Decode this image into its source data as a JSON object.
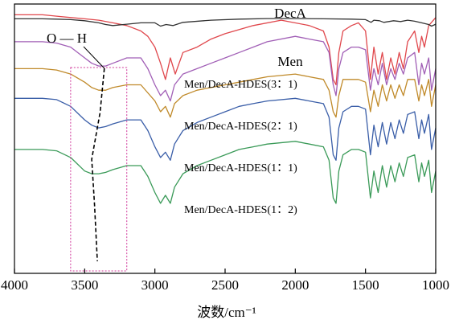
{
  "chart_data": {
    "type": "line",
    "xlabel": "波数/cm⁻¹",
    "ylabel": "",
    "xlim": [
      4000,
      1000
    ],
    "x_reversed": true,
    "x_ticks": [
      "4000",
      "3500",
      "3000",
      "2500",
      "2000",
      "1500",
      "1000"
    ],
    "grid": false,
    "legend": "inline labels next to each curve",
    "annotations": {
      "oh_label": "O — H",
      "oh_box_x_range": [
        3600,
        3200
      ],
      "oh_trend_x": [
        3360,
        3390,
        3450,
        3430,
        3410
      ]
    },
    "series": [
      {
        "name": "DecA",
        "color": "#e0474c",
        "x": [
          4000,
          3800,
          3700,
          3600,
          3500,
          3400,
          3300,
          3200,
          3100,
          3050,
          3000,
          2960,
          2925,
          2890,
          2855,
          2800,
          2700,
          2600,
          2500,
          2300,
          2100,
          1900,
          1800,
          1760,
          1730,
          1710,
          1690,
          1660,
          1600,
          1550,
          1500,
          1465,
          1440,
          1410,
          1380,
          1350,
          1320,
          1290,
          1260,
          1230,
          1200,
          1150,
          1120,
          1100,
          1080,
          1050,
          1000
        ],
        "y": [
          0.96,
          0.96,
          0.955,
          0.95,
          0.945,
          0.94,
          0.93,
          0.92,
          0.9,
          0.88,
          0.84,
          0.78,
          0.72,
          0.8,
          0.74,
          0.82,
          0.84,
          0.87,
          0.89,
          0.92,
          0.94,
          0.92,
          0.9,
          0.84,
          0.72,
          0.7,
          0.82,
          0.9,
          0.92,
          0.93,
          0.9,
          0.72,
          0.84,
          0.74,
          0.82,
          0.72,
          0.8,
          0.74,
          0.82,
          0.76,
          0.86,
          0.9,
          0.82,
          0.88,
          0.84,
          0.92,
          0.95
        ]
      },
      {
        "name": "Men",
        "color": "#333333",
        "x": [
          4000,
          3800,
          3700,
          3600,
          3500,
          3400,
          3350,
          3300,
          3200,
          3100,
          3000,
          2960,
          2920,
          2870,
          2800,
          2600,
          2400,
          2200,
          2000,
          1800,
          1600,
          1500,
          1460,
          1440,
          1400,
          1370,
          1300,
          1250,
          1200,
          1150,
          1100,
          1050,
          1030,
          1000
        ],
        "y": [
          0.945,
          0.945,
          0.944,
          0.942,
          0.938,
          0.93,
          0.924,
          0.92,
          0.925,
          0.93,
          0.93,
          0.918,
          0.924,
          0.92,
          0.932,
          0.94,
          0.944,
          0.946,
          0.946,
          0.945,
          0.944,
          0.942,
          0.932,
          0.94,
          0.938,
          0.932,
          0.938,
          0.935,
          0.94,
          0.936,
          0.93,
          0.924,
          0.918,
          0.925
        ]
      },
      {
        "name": "Men/DecA-HDES(3：1)",
        "color": "#a15fb6",
        "x": [
          4000,
          3800,
          3700,
          3600,
          3500,
          3450,
          3400,
          3350,
          3300,
          3200,
          3100,
          3050,
          3000,
          2960,
          2925,
          2890,
          2860,
          2800,
          2700,
          2600,
          2500,
          2400,
          2300,
          2200,
          2000,
          1900,
          1800,
          1760,
          1730,
          1710,
          1690,
          1660,
          1600,
          1550,
          1500,
          1465,
          1440,
          1410,
          1380,
          1350,
          1320,
          1290,
          1260,
          1230,
          1200,
          1150,
          1120,
          1100,
          1080,
          1050,
          1030,
          1000
        ],
        "y": [
          0.86,
          0.86,
          0.855,
          0.84,
          0.8,
          0.78,
          0.77,
          0.77,
          0.78,
          0.8,
          0.8,
          0.76,
          0.7,
          0.66,
          0.68,
          0.64,
          0.7,
          0.74,
          0.76,
          0.78,
          0.8,
          0.82,
          0.84,
          0.86,
          0.88,
          0.87,
          0.86,
          0.82,
          0.7,
          0.66,
          0.76,
          0.82,
          0.84,
          0.84,
          0.83,
          0.68,
          0.76,
          0.7,
          0.78,
          0.7,
          0.76,
          0.72,
          0.78,
          0.74,
          0.8,
          0.82,
          0.7,
          0.78,
          0.74,
          0.8,
          0.68,
          0.76
        ]
      },
      {
        "name": "Men/DecA-HDES(2：1)",
        "color": "#c08a2a",
        "x": [
          4000,
          3800,
          3700,
          3600,
          3500,
          3450,
          3400,
          3350,
          3300,
          3200,
          3100,
          3050,
          3000,
          2960,
          2925,
          2890,
          2860,
          2800,
          2700,
          2600,
          2500,
          2400,
          2300,
          2200,
          2000,
          1900,
          1800,
          1760,
          1730,
          1710,
          1690,
          1660,
          1600,
          1550,
          1500,
          1465,
          1440,
          1410,
          1380,
          1350,
          1320,
          1290,
          1260,
          1230,
          1200,
          1150,
          1120,
          1100,
          1080,
          1050,
          1030,
          1000
        ],
        "y": [
          0.76,
          0.76,
          0.755,
          0.74,
          0.71,
          0.69,
          0.68,
          0.68,
          0.69,
          0.7,
          0.7,
          0.67,
          0.64,
          0.6,
          0.62,
          0.58,
          0.63,
          0.66,
          0.68,
          0.69,
          0.7,
          0.71,
          0.72,
          0.73,
          0.74,
          0.73,
          0.72,
          0.68,
          0.6,
          0.58,
          0.66,
          0.72,
          0.72,
          0.72,
          0.71,
          0.6,
          0.68,
          0.62,
          0.7,
          0.64,
          0.7,
          0.65,
          0.7,
          0.66,
          0.72,
          0.72,
          0.64,
          0.7,
          0.66,
          0.72,
          0.62,
          0.7
        ]
      },
      {
        "name": "Men/DecA-HDES(1：1)",
        "color": "#3a5ea8",
        "x": [
          4000,
          3800,
          3700,
          3600,
          3500,
          3450,
          3400,
          3350,
          3300,
          3200,
          3100,
          3050,
          3000,
          2960,
          2925,
          2890,
          2860,
          2800,
          2700,
          2600,
          2500,
          2400,
          2300,
          2200,
          2000,
          1900,
          1800,
          1760,
          1730,
          1710,
          1690,
          1660,
          1600,
          1550,
          1500,
          1465,
          1440,
          1410,
          1380,
          1350,
          1320,
          1290,
          1260,
          1230,
          1200,
          1150,
          1120,
          1100,
          1080,
          1050,
          1030,
          1000
        ],
        "y": [
          0.65,
          0.65,
          0.645,
          0.62,
          0.57,
          0.55,
          0.54,
          0.545,
          0.555,
          0.57,
          0.57,
          0.53,
          0.47,
          0.43,
          0.45,
          0.42,
          0.48,
          0.53,
          0.56,
          0.58,
          0.6,
          0.62,
          0.63,
          0.64,
          0.65,
          0.64,
          0.63,
          0.58,
          0.44,
          0.42,
          0.54,
          0.6,
          0.62,
          0.62,
          0.61,
          0.44,
          0.55,
          0.47,
          0.56,
          0.48,
          0.56,
          0.5,
          0.57,
          0.52,
          0.59,
          0.6,
          0.5,
          0.57,
          0.52,
          0.59,
          0.46,
          0.54
        ]
      },
      {
        "name": "Men/DecA-HDES(1：2)",
        "color": "#3a9a58",
        "x": [
          4000,
          3800,
          3700,
          3600,
          3500,
          3450,
          3400,
          3350,
          3300,
          3200,
          3100,
          3050,
          3000,
          2960,
          2925,
          2890,
          2860,
          2800,
          2700,
          2600,
          2500,
          2400,
          2300,
          2200,
          2000,
          1900,
          1800,
          1760,
          1730,
          1710,
          1690,
          1660,
          1600,
          1550,
          1500,
          1465,
          1440,
          1410,
          1380,
          1350,
          1320,
          1290,
          1260,
          1230,
          1200,
          1150,
          1120,
          1100,
          1080,
          1050,
          1030,
          1000
        ],
        "y": [
          0.46,
          0.46,
          0.455,
          0.43,
          0.38,
          0.37,
          0.37,
          0.375,
          0.385,
          0.4,
          0.4,
          0.36,
          0.3,
          0.26,
          0.29,
          0.26,
          0.32,
          0.37,
          0.4,
          0.42,
          0.44,
          0.46,
          0.47,
          0.48,
          0.49,
          0.48,
          0.47,
          0.42,
          0.28,
          0.26,
          0.38,
          0.44,
          0.46,
          0.46,
          0.45,
          0.28,
          0.38,
          0.3,
          0.4,
          0.32,
          0.4,
          0.34,
          0.41,
          0.36,
          0.43,
          0.44,
          0.34,
          0.41,
          0.36,
          0.42,
          0.3,
          0.38
        ]
      }
    ]
  }
}
